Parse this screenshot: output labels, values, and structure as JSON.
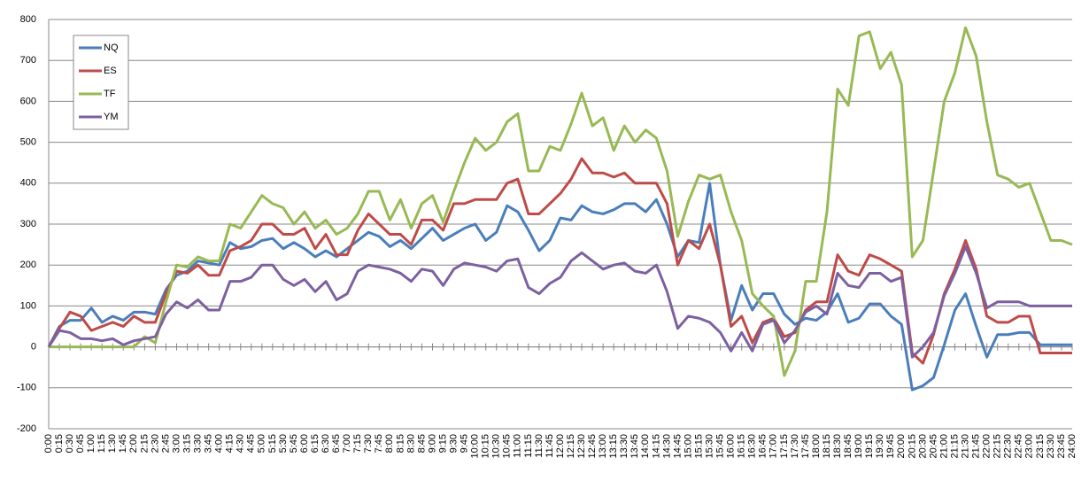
{
  "chart_data": {
    "type": "line",
    "categories": [
      "0:00",
      "0:15",
      "0:30",
      "0:45",
      "1:00",
      "1:15",
      "1:30",
      "1:45",
      "2:00",
      "2:15",
      "2:30",
      "2:45",
      "3:00",
      "3:15",
      "3:30",
      "3:45",
      "4:00",
      "4:15",
      "4:30",
      "4:45",
      "5:00",
      "5:15",
      "5:30",
      "5:45",
      "6:00",
      "6:15",
      "6:30",
      "6:45",
      "7:00",
      "7:15",
      "7:30",
      "7:45",
      "8:00",
      "8:15",
      "8:30",
      "8:45",
      "9:00",
      "9:15",
      "9:30",
      "9:45",
      "10:00",
      "10:15",
      "10:30",
      "10:45",
      "11:00",
      "11:15",
      "11:30",
      "11:45",
      "12:00",
      "12:15",
      "12:30",
      "12:45",
      "13:00",
      "13:15",
      "13:30",
      "13:45",
      "14:00",
      "14:15",
      "14:30",
      "14:45",
      "15:00",
      "15:15",
      "15:30",
      "15:45",
      "16:00",
      "16:15",
      "16:30",
      "16:45",
      "17:00",
      "17:15",
      "17:30",
      "17:45",
      "18:00",
      "18:15",
      "18:30",
      "18:45",
      "19:00",
      "19:15",
      "19:30",
      "19:45",
      "20:00",
      "20:15",
      "20:30",
      "20:45",
      "21:00",
      "21:15",
      "21:30",
      "21:45",
      "22:00",
      "22:15",
      "22:30",
      "22:45",
      "23:00",
      "23:15",
      "23:30",
      "23:45",
      "24:00"
    ],
    "series": [
      {
        "name": "NQ",
        "color": "#4a7ebb",
        "values": [
          0,
          50,
          65,
          65,
          95,
          60,
          75,
          65,
          85,
          85,
          80,
          140,
          175,
          185,
          210,
          205,
          200,
          255,
          240,
          245,
          260,
          265,
          240,
          255,
          240,
          220,
          235,
          220,
          240,
          260,
          280,
          270,
          245,
          260,
          240,
          265,
          290,
          260,
          275,
          290,
          300,
          260,
          280,
          345,
          330,
          285,
          235,
          260,
          315,
          310,
          345,
          330,
          325,
          335,
          350,
          350,
          330,
          360,
          300,
          220,
          260,
          255,
          400,
          200,
          65,
          150,
          90,
          130,
          130,
          80,
          55,
          70,
          65,
          85,
          130,
          60,
          70,
          105,
          105,
          75,
          55,
          -105,
          -95,
          -75,
          5,
          90,
          130,
          50,
          -25,
          30,
          30,
          35,
          35,
          5,
          5,
          5,
          5
        ]
      },
      {
        "name": "ES",
        "color": "#be4b48",
        "values": [
          0,
          45,
          85,
          75,
          40,
          50,
          60,
          50,
          75,
          60,
          60,
          130,
          185,
          180,
          200,
          175,
          175,
          235,
          245,
          260,
          300,
          300,
          275,
          275,
          290,
          240,
          275,
          225,
          225,
          285,
          325,
          300,
          275,
          275,
          250,
          310,
          310,
          285,
          350,
          350,
          360,
          360,
          360,
          400,
          410,
          325,
          325,
          350,
          375,
          410,
          460,
          425,
          425,
          415,
          425,
          400,
          400,
          400,
          350,
          200,
          260,
          240,
          300,
          200,
          50,
          75,
          10,
          60,
          70,
          25,
          35,
          90,
          110,
          110,
          225,
          185,
          175,
          225,
          215,
          200,
          185,
          -15,
          -40,
          30,
          130,
          190,
          260,
          190,
          75,
          60,
          60,
          75,
          75,
          -15,
          -15,
          -15,
          -15
        ]
      },
      {
        "name": "TF",
        "color": "#98b954",
        "values": [
          0,
          0,
          0,
          0,
          0,
          0,
          0,
          0,
          0,
          25,
          10,
          110,
          200,
          195,
          220,
          210,
          210,
          300,
          290,
          330,
          370,
          350,
          340,
          300,
          330,
          290,
          310,
          275,
          290,
          325,
          380,
          380,
          310,
          360,
          290,
          350,
          370,
          305,
          380,
          450,
          510,
          480,
          500,
          550,
          570,
          430,
          430,
          490,
          480,
          545,
          620,
          540,
          560,
          480,
          540,
          500,
          530,
          510,
          430,
          270,
          355,
          420,
          410,
          420,
          330,
          260,
          130,
          100,
          75,
          -70,
          -10,
          160,
          160,
          330,
          630,
          590,
          760,
          770,
          680,
          720,
          640,
          220,
          260,
          430,
          600,
          670,
          780,
          710,
          550,
          420,
          410,
          390,
          400,
          330,
          260,
          260,
          250
        ]
      },
      {
        "name": "YM",
        "color": "#7d60a0",
        "values": [
          0,
          40,
          35,
          20,
          20,
          15,
          20,
          5,
          15,
          20,
          25,
          80,
          110,
          95,
          115,
          90,
          90,
          160,
          160,
          170,
          200,
          200,
          165,
          150,
          165,
          135,
          160,
          115,
          130,
          185,
          200,
          195,
          190,
          180,
          160,
          190,
          185,
          150,
          190,
          205,
          200,
          195,
          185,
          210,
          215,
          145,
          130,
          155,
          170,
          210,
          230,
          210,
          190,
          200,
          205,
          185,
          180,
          200,
          135,
          45,
          75,
          70,
          60,
          35,
          -10,
          35,
          -10,
          55,
          65,
          10,
          40,
          85,
          100,
          80,
          180,
          150,
          145,
          180,
          180,
          160,
          170,
          -25,
          0,
          35,
          125,
          180,
          245,
          180,
          95,
          110,
          110,
          110,
          100,
          100,
          100,
          100,
          100
        ]
      }
    ],
    "ylim": [
      -200,
      800
    ],
    "yticks": [
      -200,
      -100,
      0,
      100,
      200,
      300,
      400,
      500,
      600,
      700,
      800
    ],
    "grid": true,
    "legend": "upper-left"
  }
}
